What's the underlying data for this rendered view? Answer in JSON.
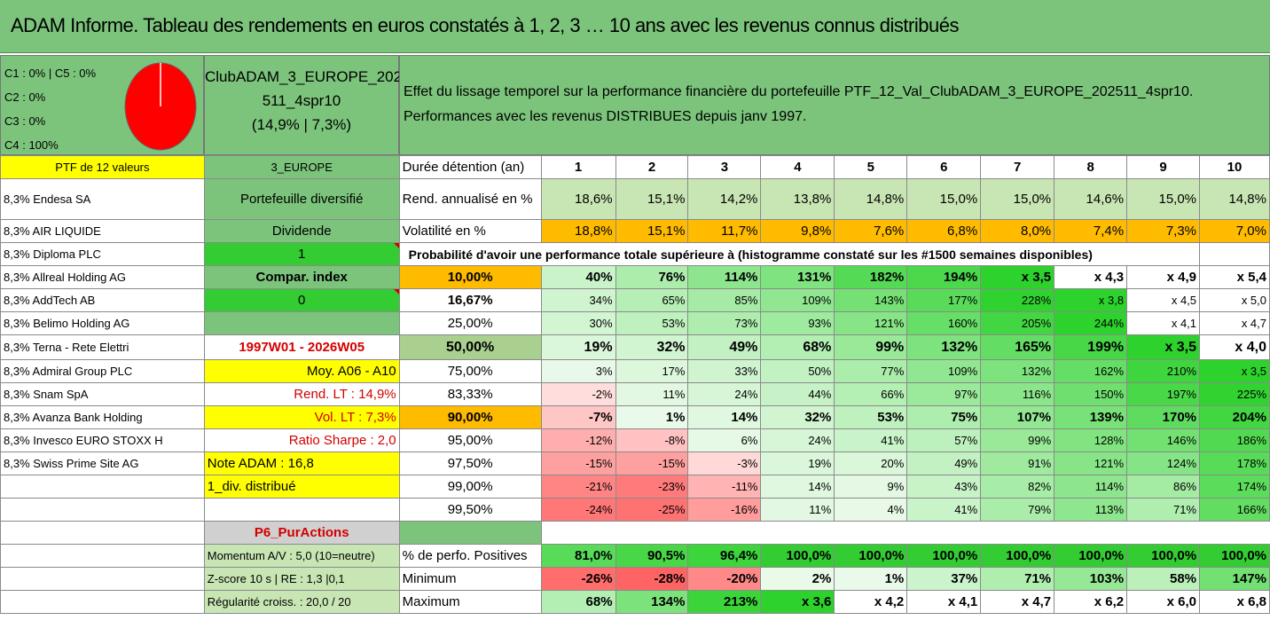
{
  "title": "ADAM Informe. Tableau des rendements en euros constatés à 1, 2, 3 … 10 ans avec les revenus connus distribués",
  "pie": {
    "legend": [
      "C1 : 0% | C5 : 0%",
      "C2 : 0%",
      "C3 : 0%",
      "C4 : 100%"
    ],
    "slice_color": "#ff0000",
    "share_c4": 1.0
  },
  "club": {
    "line1": "ClubADAM_3_EUROPE_202",
    "line2": "511_4spr10",
    "line3": "(14,9% | 7,3%)"
  },
  "effet": {
    "line1": "Effet du lissage temporel sur la performance financière du portefeuille PTF_12_Val_ClubADAM_3_EUROPE_202511_4spr10.",
    "line2": "Performances avec les revenus DISTRIBUES depuis janv 1997."
  },
  "left_col": {
    "header": "PTF de 12 valeurs",
    "holdings": [
      "8,3% Endesa SA",
      "8,3% AIR LIQUIDE",
      "8,3% Diploma PLC",
      "8,3% Allreal Holding AG",
      "8,3% AddTech AB",
      "8,3% Belimo Holding AG",
      "8,3% Terna - Rete Elettri",
      "8,3% Admiral Group PLC",
      "8,3% Snam SpA",
      "8,3% Avanza Bank Holding",
      "8,3% Invesco EURO STOXX H",
      "8,3% Swiss Prime Site AG"
    ]
  },
  "mid_col": {
    "zone": "3_EUROPE",
    "diversified": "Portefeuille diversifié",
    "dividende": "Dividende",
    "dividende_val": "1",
    "compar": "Compar. index",
    "compar_val": "0",
    "period": "1997W01 - 2026W05",
    "moy": "Moy. A06 - A10",
    "rend_lt": "Rend. LT : 14,9%",
    "vol_lt": "Vol. LT : 7,3%",
    "sharpe": "Ratio Sharpe : 2,0",
    "note": "Note ADAM : 16,8",
    "div": "1_div. distribué",
    "p6": "P6_PurActions",
    "momentum": "Momentum A/V : 5,0 (10=neutre)",
    "zscore": "Z-score 10 s | RE : 1,3 |0,1",
    "regularite": "Régularité croiss. : 20,0 / 20"
  },
  "table": {
    "duration_label": "Durée détention (an)",
    "years": [
      "1",
      "2",
      "3",
      "4",
      "5",
      "6",
      "7",
      "8",
      "9",
      "10"
    ],
    "rend_label": "Rend. annualisé en %",
    "rend": [
      "18,6%",
      "15,1%",
      "14,2%",
      "13,8%",
      "14,8%",
      "15,0%",
      "15,0%",
      "14,6%",
      "15,0%",
      "14,8%"
    ],
    "vol_label": "Volatilité en %",
    "vol": [
      "18,8%",
      "15,1%",
      "11,7%",
      "9,8%",
      "7,6%",
      "6,8%",
      "8,0%",
      "7,4%",
      "7,3%",
      "7,0%"
    ],
    "proba_label": "Probabilité d'avoir une performance totale supérieure à (histogramme constaté sur les #1500 semaines disponibles)",
    "proba_rows": [
      {
        "p": "10,00%",
        "v": [
          "40%",
          "76%",
          "114%",
          "131%",
          "182%",
          "194%",
          "x 3,5",
          "x 4,3",
          "x 4,9",
          "x 5,4"
        ]
      },
      {
        "p": "16,67%",
        "v": [
          "34%",
          "65%",
          "85%",
          "109%",
          "143%",
          "177%",
          "228%",
          "x 3,8",
          "x 4,5",
          "x 5,0"
        ]
      },
      {
        "p": "25,00%",
        "v": [
          "30%",
          "53%",
          "73%",
          "93%",
          "121%",
          "160%",
          "205%",
          "244%",
          "x 4,1",
          "x 4,7"
        ]
      },
      {
        "p": "50,00%",
        "v": [
          "19%",
          "32%",
          "49%",
          "68%",
          "99%",
          "132%",
          "165%",
          "199%",
          "x 3,5",
          "x 4,0"
        ]
      },
      {
        "p": "75,00%",
        "v": [
          "3%",
          "17%",
          "33%",
          "50%",
          "77%",
          "109%",
          "132%",
          "162%",
          "210%",
          "x 3,5"
        ]
      },
      {
        "p": "83,33%",
        "v": [
          "-2%",
          "11%",
          "24%",
          "44%",
          "66%",
          "97%",
          "116%",
          "150%",
          "197%",
          "225%"
        ]
      },
      {
        "p": "90,00%",
        "v": [
          "-7%",
          "1%",
          "14%",
          "32%",
          "53%",
          "75%",
          "107%",
          "139%",
          "170%",
          "204%"
        ]
      },
      {
        "p": "95,00%",
        "v": [
          "-12%",
          "-8%",
          "6%",
          "24%",
          "41%",
          "57%",
          "99%",
          "128%",
          "146%",
          "186%"
        ]
      },
      {
        "p": "97,50%",
        "v": [
          "-15%",
          "-15%",
          "-3%",
          "19%",
          "20%",
          "49%",
          "91%",
          "121%",
          "124%",
          "178%"
        ]
      },
      {
        "p": "99,00%",
        "v": [
          "-21%",
          "-23%",
          "-11%",
          "14%",
          "9%",
          "43%",
          "82%",
          "114%",
          "86%",
          "174%"
        ]
      },
      {
        "p": "99,50%",
        "v": [
          "-24%",
          "-25%",
          "-16%",
          "11%",
          "4%",
          "41%",
          "79%",
          "113%",
          "71%",
          "166%"
        ]
      }
    ],
    "pos_label": "% de perfo. Positives",
    "pos": [
      "81,0%",
      "90,5%",
      "96,4%",
      "100,0%",
      "100,0%",
      "100,0%",
      "100,0%",
      "100,0%",
      "100,0%",
      "100,0%"
    ],
    "min_label": "Minimum",
    "min": [
      "-26%",
      "-28%",
      "-20%",
      "2%",
      "1%",
      "37%",
      "71%",
      "103%",
      "58%",
      "147%"
    ],
    "max_label": "Maximum",
    "max": [
      "68%",
      "134%",
      "213%",
      "x 3,6",
      "x 4,2",
      "x 4,1",
      "x 4,7",
      "x 6,2",
      "x 6,0",
      "x 6,8"
    ]
  },
  "colors": {
    "header_green": "#7cc47c",
    "yellow": "#ffff00",
    "orange": "#ffbb00",
    "bright_green": "#33cc33",
    "accent_red": "#d40000"
  }
}
